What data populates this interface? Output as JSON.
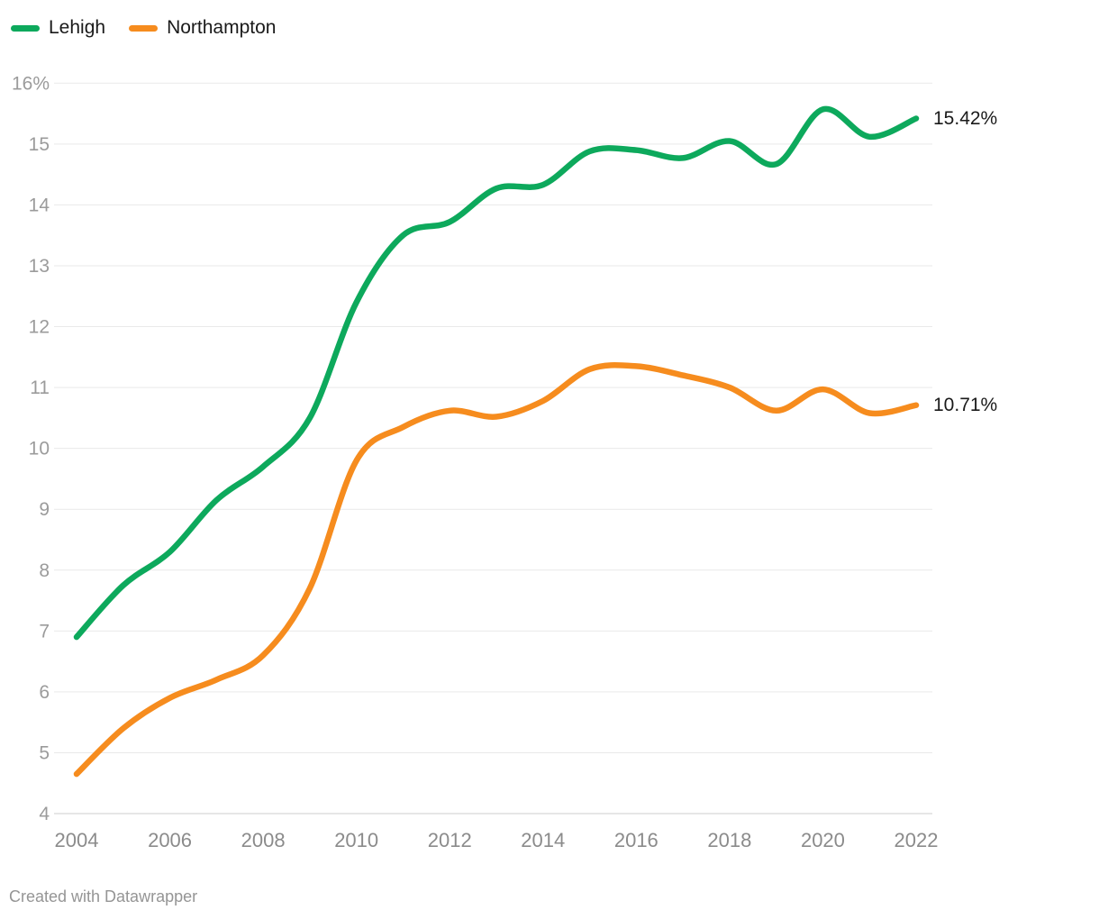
{
  "legend": {
    "items": [
      {
        "label": "Lehigh",
        "color": "#0da95c"
      },
      {
        "label": "Northampton",
        "color": "#f68c1e"
      }
    ]
  },
  "chart_data": {
    "type": "line",
    "x": [
      2004,
      2005,
      2006,
      2007,
      2008,
      2009,
      2010,
      2011,
      2012,
      2013,
      2014,
      2015,
      2016,
      2017,
      2018,
      2019,
      2020,
      2021,
      2022
    ],
    "series": [
      {
        "name": "Lehigh",
        "color": "#0da95c",
        "values": [
          6.9,
          7.75,
          8.3,
          9.15,
          9.7,
          10.5,
          12.4,
          13.5,
          13.72,
          14.27,
          14.33,
          14.88,
          14.9,
          14.77,
          15.05,
          14.67,
          15.57,
          15.12,
          15.42
        ],
        "end_label": "15.42%"
      },
      {
        "name": "Northampton",
        "color": "#f68c1e",
        "values": [
          4.65,
          5.4,
          5.9,
          6.2,
          6.6,
          7.7,
          9.8,
          10.35,
          10.62,
          10.52,
          10.78,
          11.3,
          11.35,
          11.2,
          11.0,
          10.62,
          10.97,
          10.58,
          10.71
        ],
        "end_label": "10.71%"
      }
    ],
    "title": "",
    "xlabel": "",
    "ylabel": "",
    "ylim": [
      4,
      16
    ],
    "xlim": [
      2004,
      2022
    ],
    "grid": "horizontal",
    "legend_position": "top-left",
    "y_axis": {
      "ticks": [
        {
          "value": 16,
          "label": "16%"
        },
        {
          "value": 15,
          "label": "15"
        },
        {
          "value": 14,
          "label": "14"
        },
        {
          "value": 13,
          "label": "13"
        },
        {
          "value": 12,
          "label": "12"
        },
        {
          "value": 11,
          "label": "11"
        },
        {
          "value": 10,
          "label": "10"
        },
        {
          "value": 9,
          "label": "9"
        },
        {
          "value": 8,
          "label": "8"
        },
        {
          "value": 7,
          "label": "7"
        },
        {
          "value": 6,
          "label": "6"
        },
        {
          "value": 5,
          "label": "5"
        },
        {
          "value": 4,
          "label": "4"
        }
      ]
    },
    "x_axis": {
      "ticks": [
        2004,
        2006,
        2008,
        2010,
        2012,
        2014,
        2016,
        2018,
        2020,
        2022
      ]
    }
  },
  "colors": {
    "grid_line": "#e9e9e9",
    "baseline": "#cccccc",
    "y_tick_text": "#9b9b9b",
    "x_tick_text": "#8b8b8b",
    "end_label_text": "#1a1a1a"
  },
  "footer": {
    "text": "Created with Datawrapper"
  }
}
